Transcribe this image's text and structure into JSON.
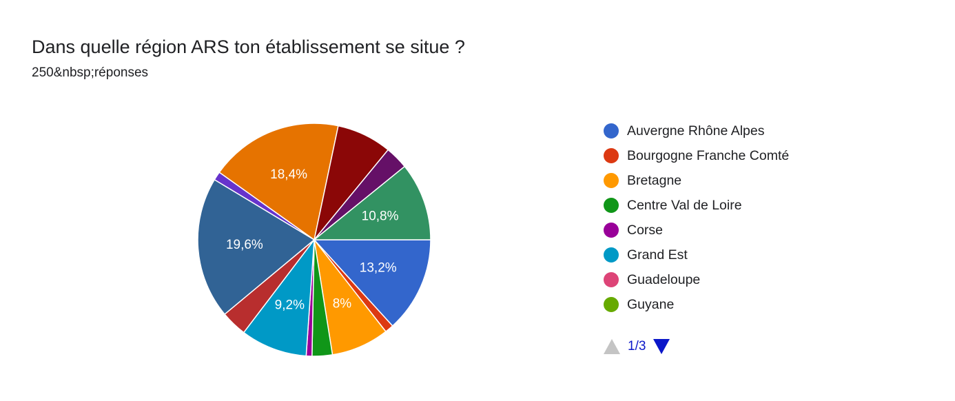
{
  "header": {
    "title": "Dans quelle région ARS ton établissement se situe ?",
    "subtitle": "250&nbsp;réponses"
  },
  "chart_data": {
    "type": "pie",
    "title": "Dans quelle région ARS ton établissement se situe ?",
    "total_responses": 250,
    "slices": [
      {
        "name": "Auvergne Rhône Alpes",
        "value": 13.2,
        "label": "13,2%",
        "color": "#3366cc"
      },
      {
        "name": "Bourgogne Franche Comté",
        "value": 1.2,
        "label": "",
        "color": "#dc3912"
      },
      {
        "name": "Bretagne",
        "value": 8.0,
        "label": "8%",
        "color": "#ff9900"
      },
      {
        "name": "Centre Val de Loire",
        "value": 2.8,
        "label": "",
        "color": "#109618"
      },
      {
        "name": "Corse",
        "value": 0.8,
        "label": "",
        "color": "#990099"
      },
      {
        "name": "Grand Est",
        "value": 9.2,
        "label": "9,2%",
        "color": "#0099c6"
      },
      {
        "name": "",
        "value": 3.6,
        "label": "",
        "color": "#b82e2e"
      },
      {
        "name": "",
        "value": 19.6,
        "label": "19,6%",
        "color": "#316395"
      },
      {
        "name": "",
        "value": 1.2,
        "label": "",
        "color": "#6633cc"
      },
      {
        "name": "",
        "value": 18.4,
        "label": "18,4%",
        "color": "#e67300"
      },
      {
        "name": "",
        "value": 7.6,
        "label": "",
        "color": "#8b0707"
      },
      {
        "name": "",
        "value": 3.2,
        "label": "",
        "color": "#651067"
      },
      {
        "name": "",
        "value": 10.8,
        "label": "10,8%",
        "color": "#329262"
      }
    ],
    "legend": {
      "position": "right",
      "items": [
        {
          "name": "Auvergne Rhône Alpes",
          "color": "#3366cc"
        },
        {
          "name": "Bourgogne Franche Comté",
          "color": "#dc3912"
        },
        {
          "name": "Bretagne",
          "color": "#ff9900"
        },
        {
          "name": "Centre Val de Loire",
          "color": "#109618"
        },
        {
          "name": "Corse",
          "color": "#990099"
        },
        {
          "name": "Grand Est",
          "color": "#0099c6"
        },
        {
          "name": "Guadeloupe",
          "color": "#dd4477"
        },
        {
          "name": "Guyane",
          "color": "#66aa00"
        }
      ]
    }
  },
  "pager": {
    "page": "1/3"
  }
}
